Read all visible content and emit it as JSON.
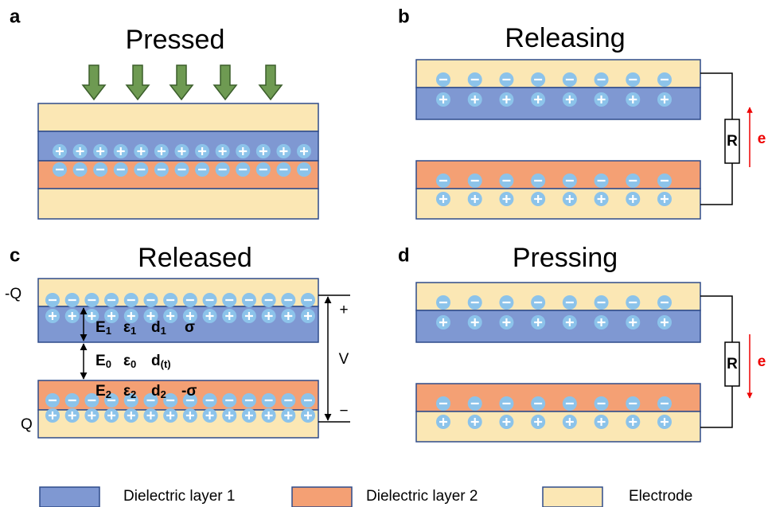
{
  "panels": [
    {
      "letter": "a",
      "title": "Pressed"
    },
    {
      "letter": "b",
      "title": "Releasing",
      "resistor": "R",
      "electron": "e"
    },
    {
      "letter": "c",
      "title": "Released",
      "top_charge": "-Q",
      "bottom_charge": "Q",
      "voltage": "V",
      "plus": "+",
      "minus": "−",
      "layer1": [
        {
          "text": "E",
          "sub": "1"
        },
        {
          "text": "ε",
          "sub": "1"
        },
        {
          "text": "d",
          "sub": "1"
        },
        {
          "text": "σ"
        }
      ],
      "gap": [
        {
          "text": "E",
          "sub": "0"
        },
        {
          "text": "ε",
          "sub": "0"
        },
        {
          "text": "d",
          "sub": "(t)"
        }
      ],
      "layer2": [
        {
          "text": "E",
          "sub": "2"
        },
        {
          "text": "ε",
          "sub": "2"
        },
        {
          "text": "d",
          "sub": "2"
        },
        {
          "text": "-σ"
        }
      ]
    },
    {
      "letter": "d",
      "title": "Pressing",
      "resistor": "R",
      "electron": "e"
    }
  ],
  "legend": [
    "Dielectric layer 1",
    "Dielectric layer 2",
    "Electrode"
  ]
}
